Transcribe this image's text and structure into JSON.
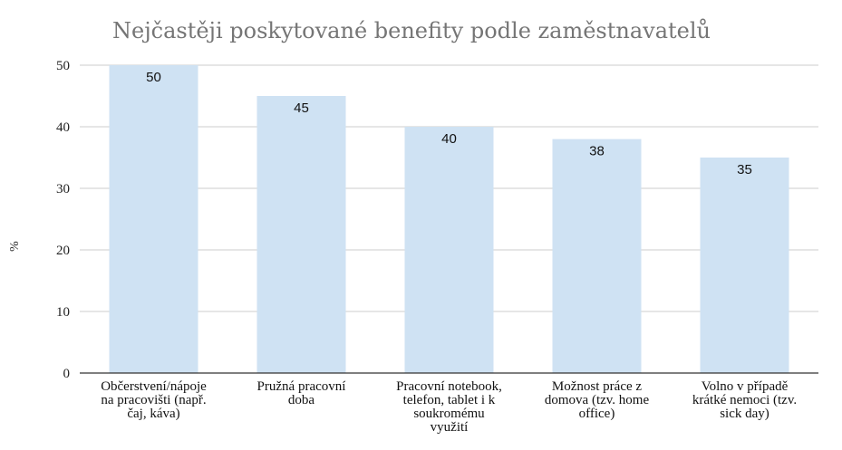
{
  "chart_data": {
    "type": "bar",
    "title": "Nejčastěji poskytované benefity podle zaměstnavatelů",
    "ylabel": "%",
    "xlabel": "",
    "ylim": [
      0,
      50
    ],
    "yticks": [
      0,
      10,
      20,
      30,
      40,
      50
    ],
    "grid": true,
    "legend": "none",
    "bar_color": "#cfe2f3",
    "categories": [
      [
        "Občerstvení/nápoje",
        "na pracovišti (např.",
        "čaj, káva)"
      ],
      [
        "Pružná pracovní",
        "doba"
      ],
      [
        "Pracovní notebook,",
        "telefon, tablet i k",
        "soukromému",
        "využití"
      ],
      [
        "Možnost práce z",
        "domova (tzv. home",
        "office)"
      ],
      [
        "Volno v případě",
        "krátké nemoci (tzv.",
        "sick day)"
      ]
    ],
    "values": [
      50,
      45,
      40,
      38,
      35
    ]
  }
}
